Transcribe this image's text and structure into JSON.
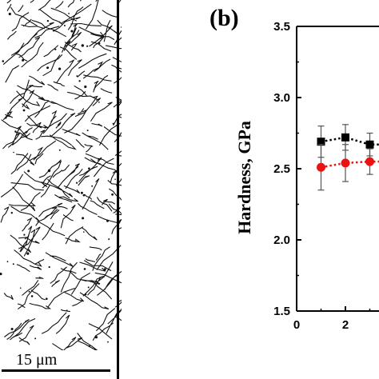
{
  "figure": {
    "panel_label": "(b)",
    "scalebar_label": "15 μm"
  },
  "chart_data": {
    "type": "scatter",
    "title": "",
    "xlabel": "",
    "ylabel": "Hardness, GPa",
    "xlim": [
      0,
      4.8
    ],
    "ylim": [
      1.5,
      3.5
    ],
    "x_ticks": [
      "0",
      "2"
    ],
    "y_ticks": [
      "1.5",
      "2.0",
      "2.5",
      "3.0",
      "3.5"
    ],
    "grid": false,
    "series": [
      {
        "marker": "square",
        "color": "#000000",
        "line_style": "dotted",
        "points": [
          {
            "x": 1,
            "y": 2.69,
            "err": 0.11
          },
          {
            "x": 2,
            "y": 2.72,
            "err": 0.09
          },
          {
            "x": 3,
            "y": 2.67,
            "err": 0.08
          }
        ]
      },
      {
        "marker": "circle",
        "color": "#ee1111",
        "line_style": "dotted",
        "points": [
          {
            "x": 1,
            "y": 2.51,
            "err": 0.16
          },
          {
            "x": 2,
            "y": 2.54,
            "err": 0.13
          },
          {
            "x": 3,
            "y": 2.55,
            "err": 0.09
          }
        ]
      }
    ]
  }
}
